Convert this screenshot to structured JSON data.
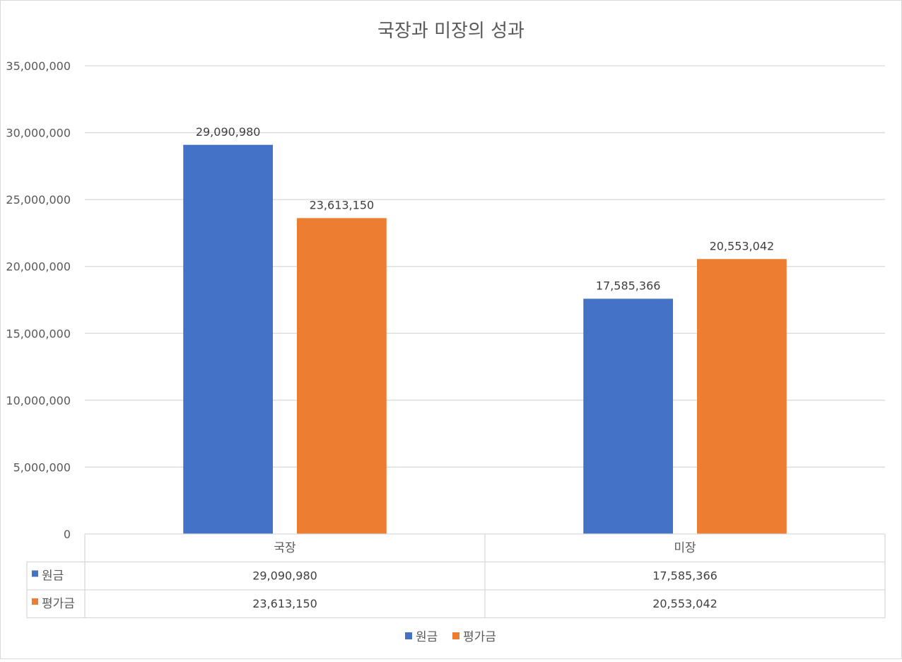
{
  "chart_data": {
    "type": "bar",
    "title": "국장과 미장의 성과",
    "categories": [
      "국장",
      "미장"
    ],
    "series": [
      {
        "name": "원금",
        "color": "#4472C4",
        "values": [
          29090980,
          17585366
        ]
      },
      {
        "name": "평가금",
        "color": "#ED7D31",
        "values": [
          23613150,
          20553042
        ]
      }
    ],
    "ylim": [
      0,
      35000000
    ],
    "yticks": [
      0,
      5000000,
      10000000,
      15000000,
      20000000,
      25000000,
      30000000,
      35000000
    ],
    "ytick_labels": [
      "0",
      "5,000,000",
      "10,000,000",
      "15,000,000",
      "20,000,000",
      "25,000,000",
      "30,000,000",
      "35,000,000"
    ],
    "data_labels": [
      [
        "29,090,980",
        "17,585,366"
      ],
      [
        "23,613,150",
        "20,553,042"
      ]
    ],
    "grid": true,
    "data_table": true,
    "legend": "bottom",
    "xlabel": "",
    "ylabel": ""
  }
}
